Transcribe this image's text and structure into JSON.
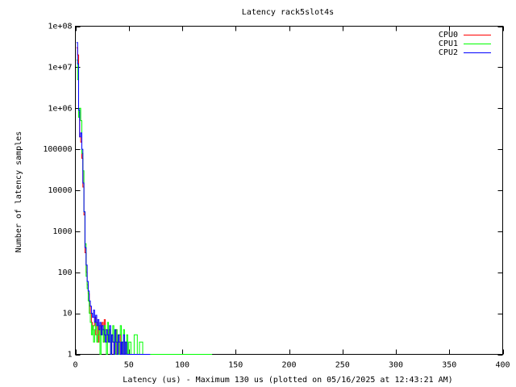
{
  "chart_data": {
    "type": "line",
    "title": "Latency rack5slot4s",
    "xlabel": "Latency (us) - Maximum 130 us (plotted on 05/16/2025 at 12:43:21 AM)",
    "ylabel": "Number of latency samples",
    "xlim": [
      0,
      400
    ],
    "ylim": [
      1,
      100000000
    ],
    "y_scale": "log",
    "legend_position": "top-right",
    "x_ticks": [
      0,
      50,
      100,
      150,
      200,
      250,
      300,
      350,
      400
    ],
    "y_ticks": [
      {
        "value": 1,
        "label": "1"
      },
      {
        "value": 10,
        "label": "10"
      },
      {
        "value": 100,
        "label": "100"
      },
      {
        "value": 1000,
        "label": "1000"
      },
      {
        "value": 10000,
        "label": "10000"
      },
      {
        "value": 100000,
        "label": "100000"
      },
      {
        "value": 1000000,
        "label": "1e+06"
      },
      {
        "value": 10000000,
        "label": "1e+07"
      },
      {
        "value": 100000000,
        "label": "1e+08"
      }
    ],
    "series": [
      {
        "name": "CPU0",
        "color": "#ff0000",
        "x": [
          1,
          2,
          3,
          4,
          5,
          6,
          7,
          8,
          9,
          10,
          11,
          12,
          13,
          14,
          15,
          16,
          17,
          18,
          19,
          20,
          21,
          22,
          23,
          24,
          25,
          26,
          27,
          28,
          29,
          30,
          31,
          32,
          33,
          34,
          35,
          36,
          37,
          38,
          39,
          40,
          41,
          42,
          43,
          44,
          45,
          46,
          47,
          48,
          49,
          50,
          52,
          55,
          58,
          62,
          70,
          77
        ],
        "y": [
          30000000,
          20000000,
          800000,
          200000,
          150000,
          60000,
          12000,
          2500,
          300,
          100,
          50,
          30,
          15,
          10,
          6,
          4,
          5,
          8,
          3,
          6,
          2,
          4,
          5,
          3,
          6,
          2,
          7,
          4,
          2,
          3,
          4,
          2,
          1,
          3,
          2,
          1,
          1,
          4,
          1,
          2,
          1,
          3,
          1,
          2,
          1,
          1,
          2,
          1,
          1,
          1,
          1,
          1,
          1,
          1,
          1,
          1
        ]
      },
      {
        "name": "CPU1",
        "color": "#00ff00",
        "x": [
          1,
          2,
          3,
          4,
          5,
          6,
          7,
          8,
          9,
          10,
          11,
          12,
          13,
          14,
          15,
          16,
          17,
          18,
          19,
          20,
          21,
          22,
          23,
          24,
          25,
          26,
          27,
          28,
          29,
          30,
          31,
          32,
          33,
          34,
          35,
          36,
          37,
          38,
          39,
          40,
          41,
          42,
          43,
          44,
          45,
          46,
          47,
          48,
          49,
          50,
          52,
          55,
          58,
          60,
          63,
          66,
          70,
          75,
          82,
          90,
          103,
          128
        ],
        "y": [
          15000000,
          5000000,
          600000,
          1000000,
          500000,
          80000,
          30000,
          3000,
          500,
          80,
          40,
          20,
          10,
          6,
          3,
          5,
          2,
          4,
          6,
          2,
          3,
          5,
          1,
          3,
          4,
          2,
          5,
          3,
          1,
          6,
          2,
          4,
          1,
          3,
          5,
          2,
          1,
          4,
          2,
          1,
          3,
          5,
          2,
          1,
          4,
          2,
          1,
          3,
          1,
          2,
          1,
          3,
          1,
          2,
          1,
          1,
          1,
          1,
          1,
          1,
          1,
          1
        ]
      },
      {
        "name": "CPU2",
        "color": "#0000ff",
        "x": [
          1,
          2,
          3,
          4,
          5,
          6,
          7,
          8,
          9,
          10,
          11,
          12,
          13,
          14,
          15,
          16,
          17,
          18,
          19,
          20,
          21,
          22,
          23,
          24,
          25,
          26,
          27,
          28,
          29,
          30,
          31,
          32,
          33,
          34,
          35,
          36,
          37,
          38,
          39,
          40,
          41,
          42,
          43,
          44,
          45,
          46,
          47,
          48,
          49,
          50,
          52,
          55,
          58,
          62,
          67,
          70
        ],
        "y": [
          40000000,
          12000000,
          900000,
          200000,
          250000,
          100000,
          15000,
          3000,
          400,
          150,
          60,
          35,
          20,
          15,
          10,
          8,
          12,
          6,
          9,
          5,
          7,
          4,
          6,
          3,
          5,
          4,
          3,
          2,
          4,
          3,
          2,
          5,
          1,
          3,
          2,
          1,
          4,
          2,
          1,
          3,
          2,
          1,
          2,
          1,
          3,
          1,
          2,
          1,
          1,
          1,
          1,
          1,
          1,
          1,
          1,
          1
        ]
      }
    ]
  }
}
